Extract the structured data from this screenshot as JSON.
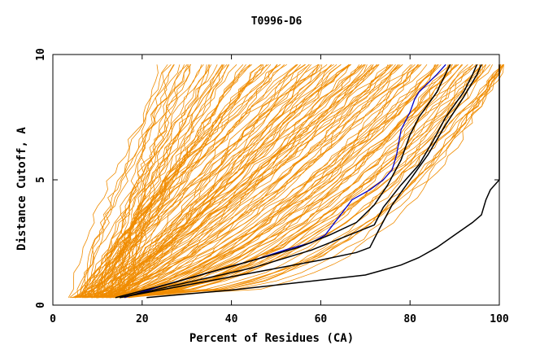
{
  "chart_data": {
    "type": "line",
    "title": "T0996-D6",
    "xlabel": "Percent of Residues (CA)",
    "ylabel": "Distance Cutoff, A",
    "xlim": [
      0,
      100
    ],
    "ylim": [
      0,
      10
    ],
    "xticks": [
      "0",
      "20",
      "40",
      "60",
      "80",
      "100"
    ],
    "yticks": [
      "0",
      "5",
      "10"
    ],
    "grid": false,
    "legend": "none",
    "colors": {
      "background_models": "#f08c00",
      "highlight": "#0000cc",
      "reference": "#000000"
    },
    "series": [
      {
        "role": "highlight",
        "color": "#0000cc",
        "x": [
          16,
          25,
          35,
          45,
          52,
          58,
          61,
          64,
          67,
          71,
          74,
          76,
          77,
          78,
          80,
          81,
          82,
          86,
          88
        ],
        "y": [
          0.3,
          0.8,
          1.3,
          1.8,
          2.2,
          2.5,
          2.8,
          3.5,
          4.2,
          4.6,
          5.0,
          5.4,
          6.0,
          7.0,
          7.7,
          8.2,
          8.5,
          9.2,
          9.6
        ]
      },
      {
        "role": "reference",
        "color": "#000000",
        "x": [
          14,
          25,
          35,
          45,
          55,
          62,
          68,
          72,
          75,
          78,
          80,
          82,
          86,
          89
        ],
        "y": [
          0.3,
          0.8,
          1.3,
          1.8,
          2.3,
          2.8,
          3.3,
          4.0,
          4.8,
          5.8,
          6.8,
          7.5,
          8.5,
          9.6
        ]
      },
      {
        "role": "reference",
        "color": "#000000",
        "x": [
          15,
          30,
          45,
          58,
          65,
          72,
          74,
          78,
          82,
          85,
          88,
          92,
          94,
          95
        ],
        "y": [
          0.3,
          0.9,
          1.5,
          2.2,
          2.7,
          3.2,
          3.9,
          4.8,
          5.6,
          6.5,
          7.5,
          8.5,
          9.2,
          9.6
        ]
      },
      {
        "role": "reference",
        "color": "#000000",
        "x": [
          15,
          30,
          45,
          60,
          68,
          71,
          73,
          76,
          80,
          84,
          88,
          92,
          95,
          96
        ],
        "y": [
          0.3,
          0.8,
          1.3,
          1.8,
          2.1,
          2.3,
          3.0,
          4.0,
          5.0,
          6.0,
          7.2,
          8.3,
          9.2,
          9.6
        ]
      },
      {
        "role": "reference",
        "color": "#000000",
        "x": [
          21,
          40,
          60,
          70,
          74,
          78,
          82,
          86,
          90,
          94,
          96,
          97,
          98,
          100,
          100,
          100,
          100
        ],
        "y": [
          0.3,
          0.6,
          1.0,
          1.2,
          1.4,
          1.6,
          1.9,
          2.3,
          2.8,
          3.3,
          3.6,
          4.2,
          4.6,
          5.0,
          5.7,
          7.0,
          9.6
        ]
      }
    ]
  }
}
